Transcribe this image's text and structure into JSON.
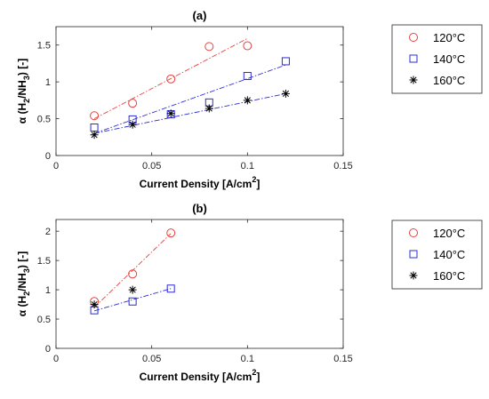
{
  "chart_data": [
    {
      "type": "scatter",
      "title": "(a)",
      "xlabel_parts": [
        "Current Density [A/cm",
        "2",
        "]"
      ],
      "ylabel_parts": [
        "α (H",
        "2",
        "/NH",
        "3",
        ") [-]"
      ],
      "xlim": [
        0,
        0.15
      ],
      "ylim": [
        0,
        1.75
      ],
      "xticks": [
        0,
        0.05,
        0.1,
        0.15
      ],
      "xtick_labels": [
        "0",
        "0.05",
        "0.1",
        "0.15"
      ],
      "yticks": [
        0,
        0.5,
        1,
        1.5
      ],
      "ytick_labels": [
        "0",
        "0.5",
        "1",
        "1.5"
      ],
      "legend_position": "right",
      "series": [
        {
          "name": "120°C",
          "marker": "circle",
          "color": "#e8423f",
          "x": [
            0.02,
            0.04,
            0.06,
            0.08,
            0.1
          ],
          "y": [
            0.54,
            0.71,
            1.04,
            1.48,
            1.49
          ],
          "fit": [
            [
              0.02,
              0.5
            ],
            [
              0.1,
              1.59
            ]
          ]
        },
        {
          "name": "140°C",
          "marker": "square",
          "color": "#2b2bd9",
          "x": [
            0.02,
            0.04,
            0.06,
            0.08,
            0.1,
            0.12
          ],
          "y": [
            0.38,
            0.49,
            0.56,
            0.72,
            1.08,
            1.28
          ],
          "fit": [
            [
              0.02,
              0.3
            ],
            [
              0.12,
              1.23
            ]
          ]
        },
        {
          "name": "160°C",
          "marker": "asterisk",
          "color": "#000000",
          "x": [
            0.02,
            0.04,
            0.06,
            0.08,
            0.1,
            0.12
          ],
          "y": [
            0.28,
            0.42,
            0.57,
            0.64,
            0.75,
            0.84
          ],
          "fit": [
            [
              0.02,
              0.3
            ],
            [
              0.12,
              0.84
            ]
          ]
        }
      ]
    },
    {
      "type": "scatter",
      "title": "(b)",
      "xlabel_parts": [
        "Current Density [A/cm",
        "2",
        "]"
      ],
      "ylabel_parts": [
        "α (H",
        "2",
        "/NH",
        "3",
        ") [-]"
      ],
      "xlim": [
        0,
        0.15
      ],
      "ylim": [
        0,
        2.2
      ],
      "xticks": [
        0,
        0.05,
        0.1,
        0.15
      ],
      "xtick_labels": [
        "0",
        "0.05",
        "0.1",
        "0.15"
      ],
      "yticks": [
        0,
        0.5,
        1,
        1.5,
        2
      ],
      "ytick_labels": [
        "0",
        "0.5",
        "1",
        "1.5",
        "2"
      ],
      "legend_position": "right",
      "series": [
        {
          "name": "120°C",
          "marker": "circle",
          "color": "#e8423f",
          "x": [
            0.02,
            0.04,
            0.06
          ],
          "y": [
            0.8,
            1.27,
            1.97
          ],
          "fit": [
            [
              0.02,
              0.7
            ],
            [
              0.06,
              1.96
            ]
          ]
        },
        {
          "name": "140°C",
          "marker": "square",
          "color": "#2b2bd9",
          "x": [
            0.02,
            0.04,
            0.06
          ],
          "y": [
            0.65,
            0.8,
            1.02
          ],
          "fit": [
            [
              0.02,
              0.64
            ],
            [
              0.06,
              1.02
            ]
          ]
        },
        {
          "name": "160°C",
          "marker": "asterisk",
          "color": "#000000",
          "x": [
            0.02,
            0.04
          ],
          "y": [
            0.75,
            1.0
          ],
          "fit": null
        }
      ]
    }
  ]
}
